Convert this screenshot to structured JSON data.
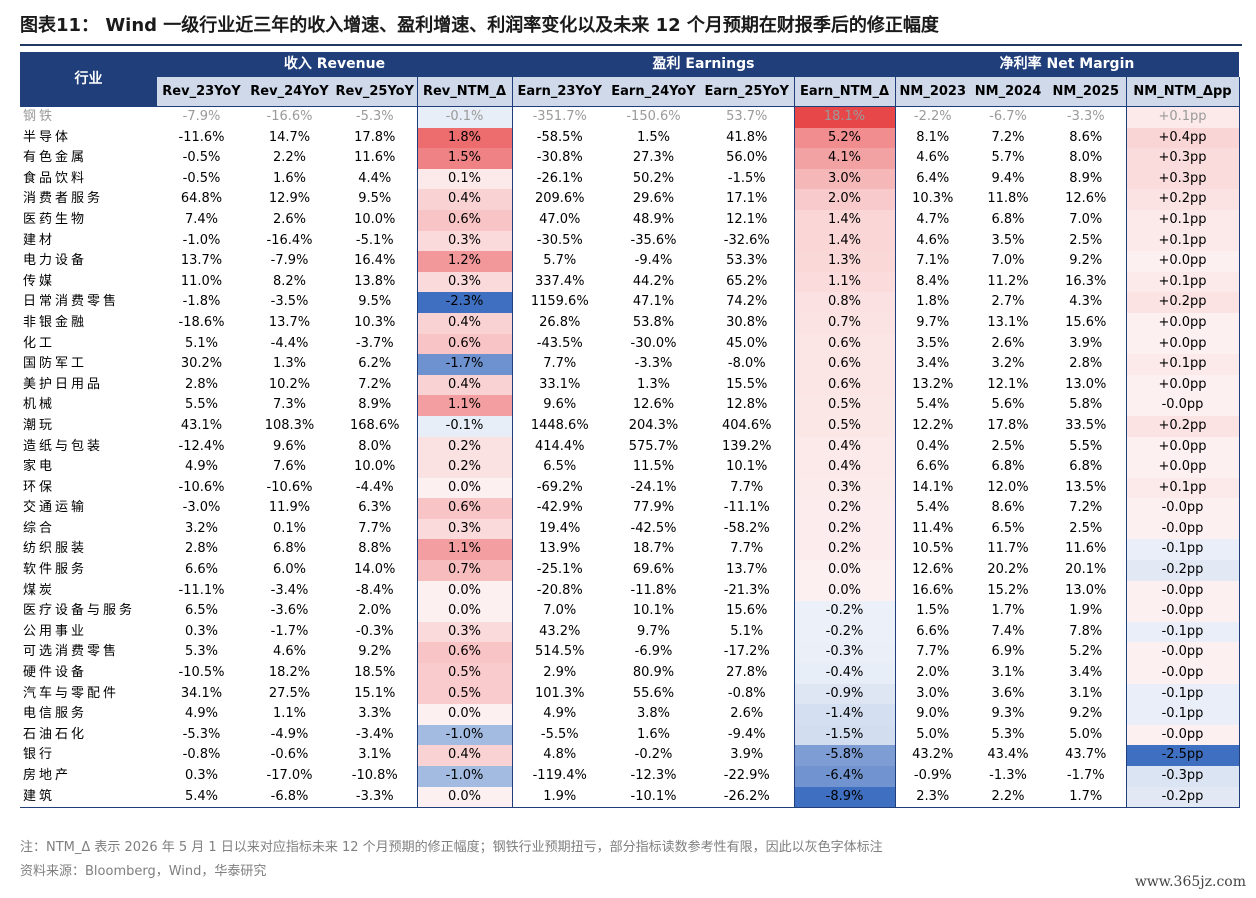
{
  "title": "图表11：  Wind 一级行业近三年的收入增速、盈利增速、利润率变化以及未来 12 个月预期在财报季后的修正幅度",
  "note": "注：NTM_Δ 表示 2026 年 5 月 1 日以来对应指标未来 12 个月预期的修正幅度；钢铁行业预期扭亏，部分指标读数参考性有限，因此以灰色字体标注",
  "source": "资料来源：Bloomberg，Wind，华泰研究",
  "watermark": "www.365jz.com",
  "chart_data": {
    "type": "table",
    "row_header": "行业",
    "groups": [
      "收入 Revenue",
      "盈利 Earnings",
      "净利率 Net Margin"
    ],
    "columns": [
      "Rev_23YoY",
      "Rev_24YoY",
      "Rev_25YoY",
      "Rev_NTM_Δ",
      "Earn_23YoY",
      "Earn_24YoY",
      "Earn_25YoY",
      "Earn_NTM_Δ",
      "NM_2023",
      "NM_2024",
      "NM_2025",
      "NM_NTM_Δpp"
    ],
    "colors": {
      "header": "#1f3e7a",
      "subheader": "#cfd9ea",
      "positive": "#e8474a",
      "negative": "#3f6fc0",
      "gray_text": "#9a9a9a"
    },
    "gray_rows": [
      "钢铁"
    ],
    "rows": [
      {
        "name": "钢铁",
        "values": [
          "-7.9%",
          "-16.6%",
          "-5.3%",
          "-0.1%",
          "-351.7%",
          "-150.6%",
          "53.7%",
          "18.1%",
          "-2.2%",
          "-6.7%",
          "-3.3%",
          "+0.1pp"
        ]
      },
      {
        "name": "半导体",
        "values": [
          "-11.6%",
          "14.7%",
          "17.8%",
          "1.8%",
          "-58.5%",
          "1.5%",
          "41.8%",
          "5.2%",
          "8.1%",
          "7.2%",
          "8.6%",
          "+0.4pp"
        ]
      },
      {
        "name": "有色金属",
        "values": [
          "-0.5%",
          "2.2%",
          "11.6%",
          "1.5%",
          "-30.8%",
          "27.3%",
          "56.0%",
          "4.1%",
          "4.6%",
          "5.7%",
          "8.0%",
          "+0.3pp"
        ]
      },
      {
        "name": "食品饮料",
        "values": [
          "-0.5%",
          "1.6%",
          "4.4%",
          "0.1%",
          "-26.1%",
          "50.2%",
          "-1.5%",
          "3.0%",
          "6.4%",
          "9.4%",
          "8.9%",
          "+0.3pp"
        ]
      },
      {
        "name": "消费者服务",
        "values": [
          "64.8%",
          "12.9%",
          "9.5%",
          "0.4%",
          "209.6%",
          "29.6%",
          "17.1%",
          "2.0%",
          "10.3%",
          "11.8%",
          "12.6%",
          "+0.2pp"
        ]
      },
      {
        "name": "医药生物",
        "values": [
          "7.4%",
          "2.6%",
          "10.0%",
          "0.6%",
          "47.0%",
          "48.9%",
          "12.1%",
          "1.4%",
          "4.7%",
          "6.8%",
          "7.0%",
          "+0.1pp"
        ]
      },
      {
        "name": "建材",
        "values": [
          "-1.0%",
          "-16.4%",
          "-5.1%",
          "0.3%",
          "-30.5%",
          "-35.6%",
          "-32.6%",
          "1.4%",
          "4.6%",
          "3.5%",
          "2.5%",
          "+0.1pp"
        ]
      },
      {
        "name": "电力设备",
        "values": [
          "13.7%",
          "-7.9%",
          "16.4%",
          "1.2%",
          "5.7%",
          "-9.4%",
          "53.3%",
          "1.3%",
          "7.1%",
          "7.0%",
          "9.2%",
          "+0.0pp"
        ]
      },
      {
        "name": "传媒",
        "values": [
          "11.0%",
          "8.2%",
          "13.8%",
          "0.3%",
          "337.4%",
          "44.2%",
          "65.2%",
          "1.1%",
          "8.4%",
          "11.2%",
          "16.3%",
          "+0.1pp"
        ]
      },
      {
        "name": "日常消费零售",
        "values": [
          "-1.8%",
          "-3.5%",
          "9.5%",
          "-2.3%",
          "1159.6%",
          "47.1%",
          "74.2%",
          "0.8%",
          "1.8%",
          "2.7%",
          "4.3%",
          "+0.2pp"
        ]
      },
      {
        "name": "非银金融",
        "values": [
          "-18.6%",
          "13.7%",
          "10.3%",
          "0.4%",
          "26.8%",
          "53.8%",
          "30.8%",
          "0.7%",
          "9.7%",
          "13.1%",
          "15.6%",
          "+0.0pp"
        ]
      },
      {
        "name": "化工",
        "values": [
          "5.1%",
          "-4.4%",
          "-3.7%",
          "0.6%",
          "-43.5%",
          "-30.0%",
          "45.0%",
          "0.6%",
          "3.5%",
          "2.6%",
          "3.9%",
          "+0.0pp"
        ]
      },
      {
        "name": "国防军工",
        "values": [
          "30.2%",
          "1.3%",
          "6.2%",
          "-1.7%",
          "7.7%",
          "-3.3%",
          "-8.0%",
          "0.6%",
          "3.4%",
          "3.2%",
          "2.8%",
          "+0.1pp"
        ]
      },
      {
        "name": "美护日用品",
        "values": [
          "2.8%",
          "10.2%",
          "7.2%",
          "0.4%",
          "33.1%",
          "1.3%",
          "15.5%",
          "0.6%",
          "13.2%",
          "12.1%",
          "13.0%",
          "+0.0pp"
        ]
      },
      {
        "name": "机械",
        "values": [
          "5.5%",
          "7.3%",
          "8.9%",
          "1.1%",
          "9.6%",
          "12.6%",
          "12.8%",
          "0.5%",
          "5.4%",
          "5.6%",
          "5.8%",
          "-0.0pp"
        ]
      },
      {
        "name": "潮玩",
        "values": [
          "43.1%",
          "108.3%",
          "168.6%",
          "-0.1%",
          "1448.6%",
          "204.3%",
          "404.6%",
          "0.5%",
          "12.2%",
          "17.8%",
          "33.5%",
          "+0.2pp"
        ]
      },
      {
        "name": "造纸与包装",
        "values": [
          "-12.4%",
          "9.6%",
          "8.0%",
          "0.2%",
          "414.4%",
          "575.7%",
          "139.2%",
          "0.4%",
          "0.4%",
          "2.5%",
          "5.5%",
          "+0.0pp"
        ]
      },
      {
        "name": "家电",
        "values": [
          "4.9%",
          "7.6%",
          "10.0%",
          "0.2%",
          "6.5%",
          "11.5%",
          "10.1%",
          "0.4%",
          "6.6%",
          "6.8%",
          "6.8%",
          "+0.0pp"
        ]
      },
      {
        "name": "环保",
        "values": [
          "-10.6%",
          "-10.6%",
          "-4.4%",
          "0.0%",
          "-69.2%",
          "-24.1%",
          "7.7%",
          "0.3%",
          "14.1%",
          "12.0%",
          "13.5%",
          "+0.1pp"
        ]
      },
      {
        "name": "交通运输",
        "values": [
          "-3.0%",
          "11.9%",
          "6.3%",
          "0.6%",
          "-42.9%",
          "77.9%",
          "-11.1%",
          "0.2%",
          "5.4%",
          "8.6%",
          "7.2%",
          "-0.0pp"
        ]
      },
      {
        "name": "综合",
        "values": [
          "3.2%",
          "0.1%",
          "7.7%",
          "0.3%",
          "19.4%",
          "-42.5%",
          "-58.2%",
          "0.2%",
          "11.4%",
          "6.5%",
          "2.5%",
          "-0.0pp"
        ]
      },
      {
        "name": "纺织服装",
        "values": [
          "2.8%",
          "6.8%",
          "8.8%",
          "1.1%",
          "13.9%",
          "18.7%",
          "7.7%",
          "0.2%",
          "10.5%",
          "11.7%",
          "11.6%",
          "-0.1pp"
        ]
      },
      {
        "name": "软件服务",
        "values": [
          "6.6%",
          "6.0%",
          "14.0%",
          "0.7%",
          "-25.1%",
          "69.6%",
          "13.7%",
          "0.0%",
          "12.6%",
          "20.2%",
          "20.1%",
          "-0.2pp"
        ]
      },
      {
        "name": "煤炭",
        "values": [
          "-11.1%",
          "-3.4%",
          "-8.4%",
          "0.0%",
          "-20.8%",
          "-11.8%",
          "-21.3%",
          "0.0%",
          "16.6%",
          "15.2%",
          "13.0%",
          "-0.0pp"
        ]
      },
      {
        "name": "医疗设备与服务",
        "values": [
          "6.5%",
          "-3.6%",
          "2.0%",
          "0.0%",
          "7.0%",
          "10.1%",
          "15.6%",
          "-0.2%",
          "1.5%",
          "1.7%",
          "1.9%",
          "-0.0pp"
        ]
      },
      {
        "name": "公用事业",
        "values": [
          "0.3%",
          "-1.7%",
          "-0.3%",
          "0.3%",
          "43.2%",
          "9.7%",
          "5.1%",
          "-0.2%",
          "6.6%",
          "7.4%",
          "7.8%",
          "-0.1pp"
        ]
      },
      {
        "name": "可选消费零售",
        "values": [
          "5.3%",
          "4.6%",
          "9.2%",
          "0.6%",
          "514.5%",
          "-6.9%",
          "-17.2%",
          "-0.3%",
          "7.7%",
          "6.9%",
          "5.2%",
          "-0.0pp"
        ]
      },
      {
        "name": "硬件设备",
        "values": [
          "-10.5%",
          "18.2%",
          "18.5%",
          "0.5%",
          "2.9%",
          "80.9%",
          "27.8%",
          "-0.4%",
          "2.0%",
          "3.1%",
          "3.4%",
          "-0.0pp"
        ]
      },
      {
        "name": "汽车与零配件",
        "values": [
          "34.1%",
          "27.5%",
          "15.1%",
          "0.5%",
          "101.3%",
          "55.6%",
          "-0.8%",
          "-0.9%",
          "3.0%",
          "3.6%",
          "3.1%",
          "-0.1pp"
        ]
      },
      {
        "name": "电信服务",
        "values": [
          "4.9%",
          "1.1%",
          "3.3%",
          "0.0%",
          "4.9%",
          "3.8%",
          "2.6%",
          "-1.4%",
          "9.0%",
          "9.3%",
          "9.2%",
          "-0.1pp"
        ]
      },
      {
        "name": "石油石化",
        "values": [
          "-5.3%",
          "-4.9%",
          "-3.4%",
          "-1.0%",
          "-5.5%",
          "1.6%",
          "-9.4%",
          "-1.5%",
          "5.0%",
          "5.3%",
          "5.0%",
          "-0.0pp"
        ]
      },
      {
        "name": "银行",
        "values": [
          "-0.8%",
          "-0.6%",
          "3.1%",
          "0.4%",
          "4.8%",
          "-0.2%",
          "3.9%",
          "-5.8%",
          "43.2%",
          "43.4%",
          "43.7%",
          "-2.5pp"
        ]
      },
      {
        "name": "房地产",
        "values": [
          "0.3%",
          "-17.0%",
          "-10.8%",
          "-1.0%",
          "-119.4%",
          "-12.3%",
          "-22.9%",
          "-6.4%",
          "-0.9%",
          "-1.3%",
          "-1.7%",
          "-0.3pp"
        ]
      },
      {
        "name": "建筑",
        "values": [
          "5.4%",
          "-6.8%",
          "-3.3%",
          "0.0%",
          "1.9%",
          "-10.1%",
          "-26.2%",
          "-8.9%",
          "2.3%",
          "2.2%",
          "1.7%",
          "-0.2pp"
        ]
      }
    ]
  }
}
